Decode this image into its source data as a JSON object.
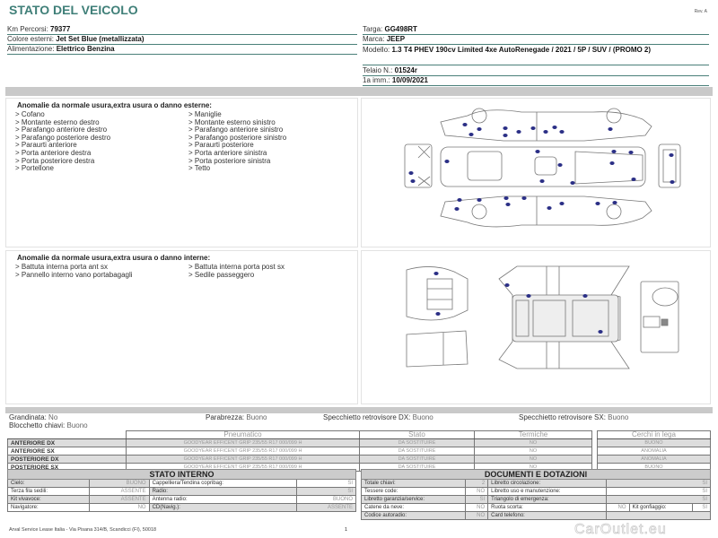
{
  "header": {
    "title": "STATO DEL VEICOLO",
    "rev": "Rev. A"
  },
  "vehicle_left": [
    {
      "label": "Km Percorsi:",
      "value": "79377"
    },
    {
      "label": "Colore esterni:",
      "value": "Jet Set Blue (metallizzata)"
    },
    {
      "label": "Alimentazione:",
      "value": "Elettrico Benzina"
    }
  ],
  "vehicle_right": {
    "targa": {
      "label": "Targa:",
      "value": "GG498RT"
    },
    "marca": {
      "label": "Marca:",
      "value": "JEEP"
    },
    "modello": {
      "label": "Modello:",
      "value": "1.3 T4 PHEV 190cv Limited 4xe AutoRenegade / 2021 / 5P / SUV / (PROMO 2)"
    },
    "telaio": {
      "label": "Telaio N.:",
      "value": "01524r"
    },
    "imm": {
      "label": "1a imm.:",
      "value": "10/09/2021"
    }
  },
  "exterior": {
    "heading": "Anomalie da normale usura,extra usura o danno esterne:",
    "col1": [
      "> Cofano",
      "> Montante esterno destro",
      "> Parafango anteriore destro",
      "> Parafango posteriore destro",
      "> Paraurti anteriore",
      "> Porta anteriore destra",
      "> Porta posteriore destra",
      "> Portellone"
    ],
    "col2": [
      "> Maniglie",
      "> Montante esterno sinistro",
      "> Parafango anteriore sinistro",
      "> Parafango posteriore sinistro",
      "> Paraurti posteriore",
      "> Porta anteriore sinistra",
      "> Porta posteriore sinistra",
      "> Tetto"
    ]
  },
  "interior": {
    "heading": "Anomalie da normale usura,extra usura o danno interne:",
    "col1": [
      "> Battuta interna porta ant sx",
      "> Pannello interno vano portabagagli"
    ],
    "col2": [
      "> Battuta interna porta post sx",
      "> Sedile passeggero"
    ]
  },
  "marker_color": "#2b2f86",
  "misc": {
    "grandinata": {
      "label": "Grandinata:",
      "value": "No"
    },
    "blocchetto": {
      "label": "Blocchetto chiavi:",
      "value": "Buono"
    },
    "parabrezza": {
      "label": "Parabrezza:",
      "value": "Buono"
    },
    "spec_dx": {
      "label": "Specchietto retrovisore DX:",
      "value": "Buono"
    },
    "spec_sx": {
      "label": "Specchietto retrovisore SX:",
      "value": "Buono"
    }
  },
  "tyres": {
    "headers": [
      "Pneumatico",
      "Stato",
      "Termiche",
      "Cerchi in lega"
    ],
    "rows": [
      {
        "pos": "ANTERIORE DX",
        "tyre": "GOODYEAR EFFICENT GRIP 235/55 R17 000/099 H",
        "stato": "DA SOSTITUIRE",
        "termiche": "NO",
        "cerchi": "BUONO"
      },
      {
        "pos": "ANTERIORE SX",
        "tyre": "GOODYEAR EFFICENT GRIP 235/55 R17 000/099 H",
        "stato": "DA SOSTITUIRE",
        "termiche": "NO",
        "cerchi": "ANOMALIA"
      },
      {
        "pos": "POSTERIORE DX",
        "tyre": "GOODYEAR EFFICENT GRIP 235/55 R17 000/099 H",
        "stato": "DA SOSTITUIRE",
        "termiche": "NO",
        "cerchi": "ANOMALIA"
      },
      {
        "pos": "POSTERIORE SX",
        "tyre": "GOODYEAR EFFICENT GRIP 235/55 R17 000/099 H",
        "stato": "DA SOSTITUIRE",
        "termiche": "NO",
        "cerchi": "BUONO"
      }
    ]
  },
  "stato_interno": {
    "title": "STATO INTERNO",
    "rows": [
      [
        {
          "k": "Cielo:",
          "v": "BUONO"
        },
        {
          "k": "Cappelliera/Tendina copribag:",
          "v": "SI"
        }
      ],
      [
        {
          "k": "Terza fila sedili:",
          "v": "ASSENTE"
        },
        {
          "k": "Radio:",
          "v": "SI"
        }
      ],
      [
        {
          "k": "Kit vivavoce:",
          "v": "ASSENTE"
        },
        {
          "k": "Antenna radio:",
          "v": "BUONO"
        }
      ],
      [
        {
          "k": "Navigatore:",
          "v": "NO"
        },
        {
          "k": "CD(Navig.):",
          "v": "ASSENTE"
        }
      ]
    ]
  },
  "documenti": {
    "title": "DOCUMENTI E DOTAZIONI",
    "rows": [
      {
        "a": {
          "k": "Totale chiavi:",
          "v": "2"
        },
        "b": {
          "k": "Libretto circolazione:",
          "v": "SI"
        }
      },
      {
        "a": {
          "k": "Tessere code:",
          "v": "NO"
        },
        "b": {
          "k": "Libretto uso e manutenzione:",
          "v": "SI"
        }
      },
      {
        "a": {
          "k": "Libretto garanzia/service:",
          "v": "SI"
        },
        "b": {
          "k": "Triangolo di emergenza:",
          "v": "SI"
        }
      },
      {
        "a": {
          "k": "Catene da neve:",
          "v": "NO"
        },
        "b": {
          "k": "Ruota scorta:",
          "v": "NO"
        },
        "c": {
          "k": "Kit gonfiaggio:",
          "v": "SI"
        }
      },
      {
        "a": {
          "k": "Codice autoradio:",
          "v": "NO"
        },
        "b": {
          "k": "Card telefono:",
          "v": ""
        }
      }
    ]
  },
  "footer": {
    "address": "Arval Service Lease Italia - Via Pisana 314/B, Scandicci (FI), 50018",
    "page": "1",
    "watermark": "CarOutlet.eu"
  }
}
